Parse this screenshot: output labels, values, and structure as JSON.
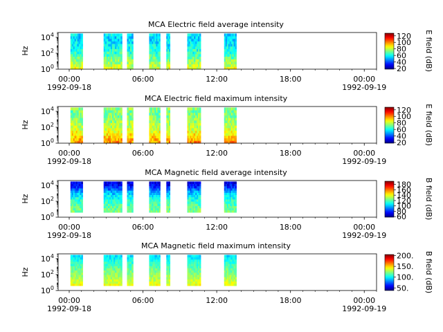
{
  "chart_data": [
    {
      "type": "heatmap",
      "title": "MCA  Electric field average intensity",
      "ylabel": "Hz",
      "yscale": "log",
      "yticks": [
        {
          "exp": "0",
          "value": 1
        },
        {
          "exp": "2",
          "value": 100
        },
        {
          "exp": "4",
          "value": 10000
        }
      ],
      "ylim": [
        1,
        40000
      ],
      "xlim_hours": [
        -0.9,
        25
      ],
      "xticks": [
        {
          "label": "00:00",
          "date": "1992-09-18",
          "hour": 0
        },
        {
          "label": "06:00",
          "date": "",
          "hour": 6
        },
        {
          "label": "12:00",
          "date": "",
          "hour": 12
        },
        {
          "label": "18:00",
          "date": "",
          "hour": 18
        },
        {
          "label": "00:00",
          "date": "1992-09-19",
          "hour": 24
        }
      ],
      "colorbar": {
        "label": "E field (dB)",
        "ticks": [
          20,
          40,
          60,
          80,
          100,
          120
        ],
        "range": [
          18,
          128
        ]
      },
      "segments_hours": [
        [
          0.1,
          1.1
        ],
        [
          2.8,
          4.3
        ],
        [
          4.7,
          5.2
        ],
        [
          6.5,
          7.4
        ],
        [
          7.9,
          8.2
        ],
        [
          9.6,
          10.7
        ],
        [
          12.6,
          13.6
        ]
      ],
      "profile_db": [
        [
          1,
          85
        ],
        [
          10,
          75
        ],
        [
          100,
          65
        ],
        [
          1000,
          58
        ],
        [
          10000,
          55
        ],
        [
          30000,
          58
        ]
      ]
    },
    {
      "type": "heatmap",
      "title": "MCA  Electric field maximum intensity",
      "ylabel": "Hz",
      "yscale": "log",
      "yticks": [
        {
          "exp": "0",
          "value": 1
        },
        {
          "exp": "2",
          "value": 100
        },
        {
          "exp": "4",
          "value": 10000
        }
      ],
      "ylim": [
        1,
        40000
      ],
      "xlim_hours": [
        -0.9,
        25
      ],
      "xticks": [
        {
          "label": "00:00",
          "date": "1992-09-18",
          "hour": 0
        },
        {
          "label": "06:00",
          "date": "",
          "hour": 6
        },
        {
          "label": "12:00",
          "date": "",
          "hour": 12
        },
        {
          "label": "18:00",
          "date": "",
          "hour": 18
        },
        {
          "label": "00:00",
          "date": "1992-09-19",
          "hour": 24
        }
      ],
      "colorbar": {
        "label": "E field (dB)",
        "ticks": [
          20,
          40,
          60,
          80,
          100,
          120
        ],
        "range": [
          18,
          128
        ]
      },
      "segments_hours": [
        [
          0.1,
          1.1
        ],
        [
          2.8,
          4.3
        ],
        [
          4.7,
          5.2
        ],
        [
          6.5,
          7.4
        ],
        [
          7.9,
          8.2
        ],
        [
          9.6,
          10.7
        ],
        [
          12.6,
          13.6
        ]
      ],
      "profile_db": [
        [
          1,
          100
        ],
        [
          10,
          90
        ],
        [
          100,
          80
        ],
        [
          1000,
          75
        ],
        [
          10000,
          72
        ],
        [
          30000,
          75
        ]
      ]
    },
    {
      "type": "heatmap",
      "title": "MCA  Magnetic field average intensity",
      "ylabel": "Hz",
      "yscale": "log",
      "yticks": [
        {
          "exp": "0",
          "value": 1
        },
        {
          "exp": "2",
          "value": 100
        },
        {
          "exp": "4",
          "value": 10000
        }
      ],
      "ylim": [
        1,
        40000
      ],
      "xlim_hours": [
        -0.9,
        25
      ],
      "xticks": [
        {
          "label": "00:00",
          "date": "1992-09-18",
          "hour": 0
        },
        {
          "label": "06:00",
          "date": "",
          "hour": 6
        },
        {
          "label": "12:00",
          "date": "",
          "hour": 12
        },
        {
          "label": "18:00",
          "date": "",
          "hour": 18
        },
        {
          "label": "00:00",
          "date": "1992-09-19",
          "hour": 24
        }
      ],
      "colorbar": {
        "label": "B field (dB)",
        "ticks": [
          60,
          80,
          100,
          120,
          140,
          160,
          180
        ],
        "range": [
          58,
          192
        ]
      },
      "segments_hours": [
        [
          0.1,
          1.1
        ],
        [
          2.8,
          4.3
        ],
        [
          4.7,
          5.2
        ],
        [
          6.5,
          7.4
        ],
        [
          7.9,
          8.2
        ],
        [
          9.6,
          10.7
        ],
        [
          12.6,
          13.6
        ]
      ],
      "profile_db": [
        [
          5,
          125
        ],
        [
          30,
          120
        ],
        [
          300,
          110
        ],
        [
          2000,
          95
        ],
        [
          10000,
          75
        ],
        [
          30000,
          70
        ]
      ]
    },
    {
      "type": "heatmap",
      "title": "MCA  Magnetic field maximum intensity",
      "ylabel": "Hz",
      "yscale": "log",
      "yticks": [
        {
          "exp": "0",
          "value": 1
        },
        {
          "exp": "2",
          "value": 100
        },
        {
          "exp": "4",
          "value": 10000
        }
      ],
      "ylim": [
        1,
        40000
      ],
      "xlim_hours": [
        -0.9,
        25
      ],
      "xticks": [
        {
          "label": "00:00",
          "date": "1992-09-18",
          "hour": 0
        },
        {
          "label": "06:00",
          "date": "",
          "hour": 6
        },
        {
          "label": "12:00",
          "date": "",
          "hour": 12
        },
        {
          "label": "18:00",
          "date": "",
          "hour": 18
        },
        {
          "label": "00:00",
          "date": "1992-09-19",
          "hour": 24
        }
      ],
      "colorbar": {
        "label": "B field (dB)",
        "ticks": [
          "50.",
          "100.",
          "150.",
          "200."
        ],
        "tick_values": [
          50,
          100,
          150,
          200
        ],
        "range": [
          38,
          205
        ]
      },
      "segments_hours": [
        [
          0.1,
          1.1
        ],
        [
          2.8,
          4.3
        ],
        [
          4.7,
          5.2
        ],
        [
          6.5,
          7.4
        ],
        [
          7.9,
          8.2
        ],
        [
          9.6,
          10.7
        ],
        [
          12.6,
          13.6
        ]
      ],
      "profile_db": [
        [
          5,
          140
        ],
        [
          30,
          130
        ],
        [
          300,
          120
        ],
        [
          2000,
          110
        ],
        [
          10000,
          100
        ],
        [
          30000,
          95
        ]
      ]
    }
  ]
}
